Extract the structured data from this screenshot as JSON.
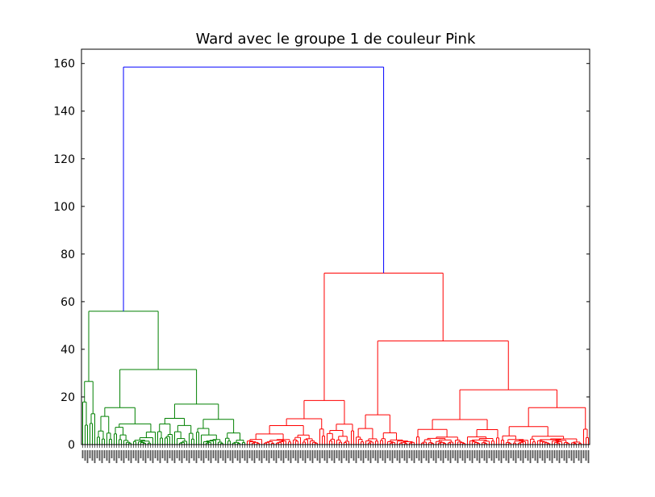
{
  "chart_data": {
    "type": "dendrogram",
    "title": "Ward avec le groupe 1 de couleur Pink",
    "xlabel": "",
    "ylabel": "",
    "ylim": [
      0,
      166
    ],
    "yticks": [
      0,
      20,
      40,
      60,
      80,
      100,
      120,
      140,
      160
    ],
    "leaf_count": 210,
    "leaf_labels_note": "leaf labels rendered vertically below axis; illegible at this resolution",
    "colors": {
      "left_cluster": "#008000",
      "right_cluster": "#ff0000",
      "top_link": "#0000ff",
      "axes": "#000000"
    },
    "clusters": [
      {
        "name": "green",
        "color": "#008000",
        "leaf_count": 68,
        "merge_height": 56,
        "children": [
          {
            "merge_height": 26.5,
            "leaves": 6
          },
          {
            "merge_height": 31.5,
            "children": [
              {
                "merge_height": 15.5,
                "leaves": 25
              },
              {
                "merge_height": 17,
                "leaves": 37
              }
            ]
          }
        ]
      },
      {
        "name": "red",
        "color": "#ff0000",
        "leaf_count": 142,
        "merge_height": 72,
        "children": [
          {
            "merge_height": 18.5,
            "leaves": 45
          },
          {
            "merge_height": 43.5,
            "children": [
              {
                "merge_height": 12.5,
                "leaves": 25
              },
              {
                "merge_height": 23,
                "children": [
                  {
                    "merge_height": 10.5,
                    "leaves": 35
                  },
                  {
                    "merge_height": 15.5,
                    "leaves": 37
                  }
                ]
              }
            ]
          }
        ]
      }
    ],
    "root_merge_height": 158.5
  }
}
